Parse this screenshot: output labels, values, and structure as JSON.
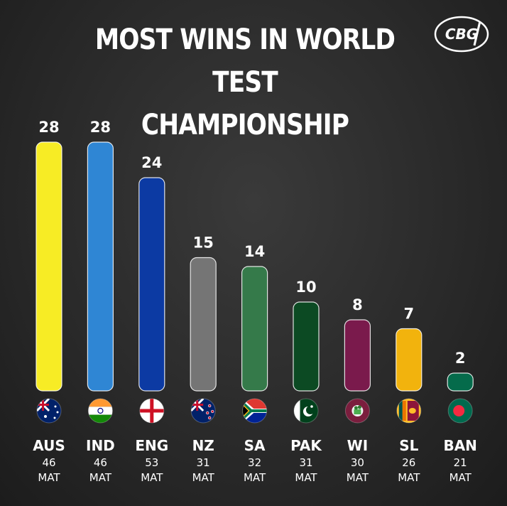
{
  "title_line1": "MOST WINS IN WORLD TEST",
  "title_line2": "CHAMPIONSHIP",
  "logo_text": "CBG",
  "chart_data": {
    "type": "bar",
    "title": "MOST WINS IN WORLD TEST CHAMPIONSHIP",
    "categories": [
      "AUS",
      "IND",
      "ENG",
      "NZ",
      "SA",
      "PAK",
      "WI",
      "SL",
      "BAN"
    ],
    "values": [
      28,
      28,
      24,
      15,
      14,
      10,
      8,
      7,
      2
    ],
    "matches": [
      "46",
      "46",
      "53",
      "31",
      "32",
      "31",
      "30",
      "26",
      "21"
    ],
    "matches_unit": "MAT",
    "bar_colors": [
      "#f7ec25",
      "#2f86d4",
      "#0c3aa3",
      "#757575",
      "#357a4a",
      "#0c4a23",
      "#7a1a4c",
      "#f2b30d",
      "#056b4b"
    ],
    "flag_icons": [
      "australia-flag-icon",
      "india-flag-icon",
      "england-flag-icon",
      "new-zealand-flag-icon",
      "south-africa-flag-icon",
      "pakistan-flag-icon",
      "west-indies-flag-icon",
      "sri-lanka-flag-icon",
      "bangladesh-flag-icon"
    ],
    "ylim": [
      0,
      28
    ],
    "grid": false,
    "legend": "none"
  }
}
